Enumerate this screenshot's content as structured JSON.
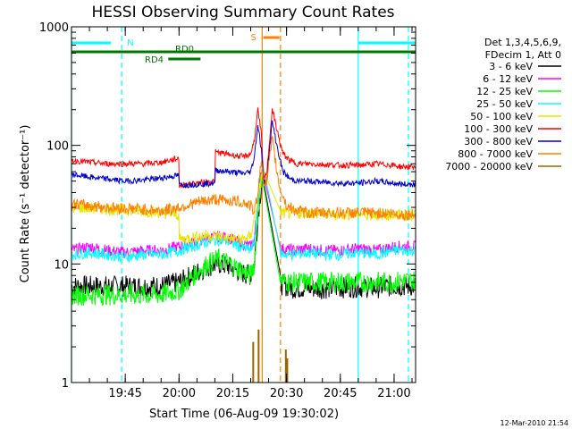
{
  "chart_data": {
    "type": "line",
    "title": "HESSI Observing Summary Count Rates",
    "xlabel": "Start Time (06-Aug-09 19:30:02)",
    "ylabel": "Count Rate (s⁻¹ detector⁻¹)",
    "x_unit": "minutes after 19:30",
    "xlim": [
      0,
      96
    ],
    "ylim": [
      1,
      1000
    ],
    "yscale": "log",
    "x_ticks": [
      {
        "x": 15,
        "label": "19:45"
      },
      {
        "x": 30,
        "label": "20:00"
      },
      {
        "x": 45,
        "label": "20:15"
      },
      {
        "x": 60,
        "label": "20:30"
      },
      {
        "x": 75,
        "label": "20:45"
      },
      {
        "x": 90,
        "label": "21:00"
      }
    ],
    "y_ticks": [
      {
        "y": 1,
        "label": "1"
      },
      {
        "y": 10,
        "label": "10"
      },
      {
        "y": 100,
        "label": "100"
      },
      {
        "y": 1000,
        "label": "1000"
      }
    ],
    "legend": {
      "placement": "right",
      "header": [
        "Det 1,3,4,5,6,9,",
        "FDecim 1, Att 0"
      ]
    },
    "series": [
      {
        "name": "3 - 6 keV",
        "color": "#000000",
        "x": [
          0,
          10,
          20,
          25,
          30,
          35,
          38,
          41,
          44,
          47,
          50,
          51,
          52,
          53,
          53.5,
          54.5,
          56,
          58,
          62,
          66,
          70,
          75,
          80,
          85,
          90,
          92,
          96
        ],
        "y": [
          6.5,
          6.5,
          6.5,
          6.5,
          7,
          8.5,
          9.5,
          10,
          9.5,
          8.5,
          8,
          10,
          25,
          48,
          55,
          22,
          9,
          6.8,
          6.2,
          6.3,
          6.2,
          6.3,
          6.4,
          6.3,
          6.5,
          6.5,
          6.5
        ]
      },
      {
        "name": "6 - 12 keV",
        "color": "#ff00ff",
        "x": [
          0,
          5,
          10,
          15,
          20,
          25,
          30,
          35,
          38,
          41,
          44,
          47,
          50,
          51,
          52,
          53,
          53.5,
          54.5,
          56,
          58,
          62,
          66,
          70,
          75,
          80,
          85,
          90,
          92,
          96
        ],
        "y": [
          13,
          14,
          13,
          12.5,
          13,
          13,
          14,
          15.5,
          16.5,
          17,
          16.5,
          15,
          14,
          16,
          35,
          62,
          70,
          30,
          15,
          13.5,
          13,
          13.5,
          13,
          13,
          13.5,
          13,
          14,
          14,
          14
        ]
      },
      {
        "name": "12 - 25 keV",
        "color": "#00ff00",
        "x": [
          0,
          10,
          20,
          25,
          30,
          35,
          38,
          41,
          44,
          47,
          50,
          51,
          52,
          53,
          53.5,
          54.5,
          56,
          58,
          62,
          66,
          70,
          75,
          80,
          85,
          90,
          92,
          96
        ],
        "y": [
          5.5,
          5.5,
          5.5,
          5.5,
          6,
          8.5,
          10,
          11,
          10,
          9,
          8,
          10,
          28,
          55,
          60,
          25,
          9.5,
          7.2,
          7,
          7,
          7,
          7,
          7,
          7,
          7,
          7.2,
          7.2
        ]
      },
      {
        "name": "25 - 50 keV",
        "color": "#00ffff",
        "x": [
          0,
          5,
          10,
          15,
          20,
          25,
          30,
          35,
          38,
          41,
          44,
          47,
          50,
          51,
          52,
          53,
          53.5,
          54.5,
          56,
          58,
          62,
          66,
          70,
          75,
          80,
          85,
          90,
          92,
          96
        ],
        "y": [
          12,
          12.5,
          12,
          11.5,
          12,
          12,
          13,
          14.5,
          15.5,
          16,
          15.5,
          14,
          13,
          15,
          32,
          60,
          68,
          28,
          14,
          12.2,
          12,
          12.5,
          12,
          12,
          12.5,
          12,
          13,
          13,
          13
        ]
      },
      {
        "name": "50 - 100 keV",
        "color": "#e6e600",
        "x": [
          0,
          10,
          20,
          25,
          30,
          30.01,
          35,
          38,
          41,
          44,
          47,
          50,
          52,
          53,
          53.5,
          54.5,
          56,
          58,
          62,
          66,
          70,
          75,
          80,
          85,
          90,
          92,
          96
        ],
        "y": [
          30,
          29,
          28,
          27,
          26,
          16,
          17,
          17.5,
          17,
          16.5,
          16,
          17,
          35,
          55,
          62,
          40,
          28,
          27,
          26.5,
          27,
          26.5,
          26,
          26.5,
          26,
          26,
          26,
          26
        ]
      },
      {
        "name": "100 - 300 keV",
        "color": "#ff0000",
        "x": [
          0,
          5,
          10,
          15,
          20,
          25,
          30,
          30.01,
          35,
          40,
          40.01,
          44,
          48,
          50,
          51,
          52,
          53,
          53.5,
          54,
          54.5,
          56,
          57,
          58,
          59,
          61,
          63,
          66,
          70,
          75,
          80,
          85,
          90,
          92,
          96
        ],
        "y": [
          75,
          72,
          70,
          70,
          70,
          72,
          78,
          46,
          48,
          50,
          88,
          84,
          80,
          85,
          110,
          200,
          120,
          55,
          54,
          60,
          200,
          150,
          110,
          85,
          74,
          70,
          70,
          69,
          68,
          68,
          70,
          68,
          66,
          66
        ]
      },
      {
        "name": "300 - 800 keV",
        "color": "#0000cc",
        "x": [
          0,
          5,
          10,
          15,
          20,
          25,
          30,
          30.01,
          35,
          40,
          40.01,
          44,
          48,
          50,
          51,
          52,
          53,
          53.5,
          54,
          54.5,
          56,
          57,
          58,
          59,
          61,
          63,
          66,
          70,
          75,
          80,
          85,
          90,
          92,
          96
        ],
        "y": [
          57,
          54,
          52,
          50,
          51,
          53,
          56,
          46,
          47,
          48,
          62,
          60,
          58,
          60,
          80,
          150,
          90,
          50,
          48,
          52,
          160,
          110,
          80,
          60,
          52,
          50,
          50,
          49,
          48,
          48,
          50,
          48,
          47,
          47
        ]
      },
      {
        "name": "800 - 7000 keV",
        "color": "#ff8000",
        "x": [
          0,
          5,
          10,
          15,
          20,
          25,
          30,
          35,
          40,
          45,
          48,
          50,
          51,
          52,
          53,
          53.5,
          54,
          54.5,
          56,
          57,
          58,
          60,
          63,
          66,
          70,
          75,
          80,
          85,
          90,
          92,
          96
        ],
        "y": [
          32,
          31,
          30,
          29.5,
          29,
          28,
          30,
          33,
          35,
          34,
          33,
          31,
          27,
          40,
          75,
          55,
          46,
          52,
          110,
          70,
          45,
          31,
          28,
          27,
          27,
          27,
          27,
          27,
          26.5,
          26,
          26
        ]
      },
      {
        "name": "7000 - 20000 keV",
        "color": "#996600",
        "x": [
          50.7,
          52.2,
          59.8,
          60.2
        ],
        "y": [
          2.2,
          2.8,
          1.9,
          1.6
        ]
      }
    ],
    "observing_states": [
      {
        "label": "N",
        "color": "#00ffff",
        "start": 0,
        "end": 11,
        "level": "top"
      },
      {
        "label": "",
        "color": "#00ffff",
        "start": 80,
        "end": 96,
        "level": "top"
      },
      {
        "label": "S",
        "color": "#ff8000",
        "start": 53.5,
        "end": 58,
        "level": "upper"
      },
      {
        "label": "RD0",
        "color": "#007700",
        "start": 0,
        "end": 96,
        "level": "middle"
      },
      {
        "label": "RD4",
        "color": "#007700",
        "start": 27,
        "end": 36,
        "level": "low"
      }
    ],
    "event_lines": [
      {
        "x": 0,
        "color": "#00ffff",
        "style": "solid"
      },
      {
        "x": 14,
        "color": "#00ffff",
        "style": "dashed"
      },
      {
        "x": 80,
        "color": "#00ffff",
        "style": "solid"
      },
      {
        "x": 94,
        "color": "#00ffff",
        "style": "dashed"
      },
      {
        "x": 53.2,
        "color": "#ff8000",
        "style": "solid"
      },
      {
        "x": 58.3,
        "color": "#ff8000",
        "style": "dashed"
      }
    ],
    "grid": false,
    "stamp": "12-Mar-2010 21:54"
  }
}
